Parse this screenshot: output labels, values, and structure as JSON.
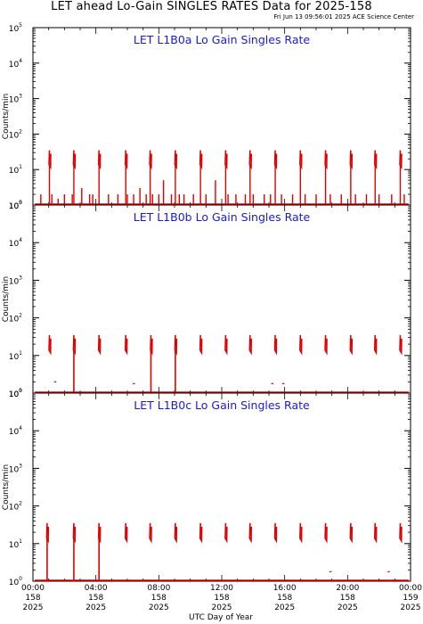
{
  "header": {
    "title": "LET ahead Lo-Gain SINGLES RATES Data for 2025-158",
    "timestamp": "Fri Jun 13 09:56:01 2025 ACE Science Center"
  },
  "colors": {
    "data": "#e00000",
    "title_text": "#1a1ad6",
    "axes": "#000000"
  },
  "chart_data": [
    {
      "type": "line",
      "title": "LET L1B0a Lo Gain Singles Rate",
      "ylabel": "Counts/min",
      "yscale": "log",
      "ylim": [
        1,
        100000
      ],
      "yticks": [
        "10^0",
        "10^1",
        "10^2",
        "10^3",
        "10^4",
        "10^5"
      ],
      "xlim": [
        0,
        24
      ],
      "burst_hours": [
        1.05,
        2.6,
        4.2,
        5.9,
        7.45,
        9.05,
        10.65,
        12.25,
        13.8,
        15.4,
        17.0,
        18.6,
        20.2,
        21.75,
        23.35
      ],
      "burst_peak": 35,
      "burst_floor": 14,
      "series": [
        {
          "values_hours": [
            0.5,
            1.2,
            1.6,
            2.0,
            2.5,
            3.1,
            3.6,
            3.8,
            4.8,
            5.4,
            6.0,
            6.4,
            6.8,
            7.2,
            7.6,
            8.0,
            8.3,
            8.8,
            9.3,
            9.6,
            10.2,
            11.0,
            11.6,
            12.4,
            12.9,
            13.5,
            14.0,
            14.7,
            15.1,
            15.8,
            16.5,
            17.3,
            18.0,
            18.9,
            19.6,
            20.5,
            21.2,
            22.0,
            22.8,
            23.6
          ],
          "values": [
            2,
            2,
            1.5,
            2,
            2,
            3,
            2,
            2,
            2,
            2,
            2,
            2,
            3,
            2,
            2,
            2,
            5,
            2,
            2,
            2,
            2,
            2,
            5,
            2,
            2,
            2,
            2,
            2,
            2,
            2,
            2,
            2,
            2,
            2,
            2,
            2,
            2,
            2,
            2,
            2
          ]
        }
      ]
    },
    {
      "type": "line",
      "title": "LET L1B0b Lo Gain Singles Rate",
      "ylabel": "Counts/min",
      "yscale": "log",
      "ylim": [
        1,
        100000
      ],
      "yticks": [
        "10^0",
        "10^1",
        "10^2",
        "10^3",
        "10^4",
        "10^5"
      ],
      "xlim": [
        0,
        24
      ],
      "burst_hours": [
        1.05,
        2.6,
        4.2,
        5.9,
        7.5,
        9.05,
        10.65,
        12.25,
        13.8,
        15.4,
        17.0,
        18.6,
        20.2,
        21.75,
        23.35
      ],
      "burst_peak": 35,
      "burst_floor": 14,
      "drop_hours": [
        2.6,
        7.5,
        9.05
      ],
      "series": [
        {
          "values_hours": [
            1.4,
            6.4,
            15.2,
            15.9
          ],
          "values": [
            2,
            1.8,
            1.8,
            1.8
          ]
        }
      ]
    },
    {
      "type": "line",
      "title": "LET L1B0c Lo Gain Singles Rate",
      "ylabel": "Counts/min",
      "yscale": "log",
      "ylim": [
        1,
        100000
      ],
      "yticks": [
        "10^0",
        "10^1",
        "10^2",
        "10^3",
        "10^4",
        "10^5"
      ],
      "xlim": [
        0,
        24
      ],
      "xlabel": "UTC Day of Year",
      "xticks": [
        {
          "hour": 0,
          "time": "00:00",
          "doy": "158",
          "year": "2025"
        },
        {
          "hour": 4,
          "time": "04:00",
          "doy": "158",
          "year": "2025"
        },
        {
          "hour": 8,
          "time": "08:00",
          "doy": "158",
          "year": "2025"
        },
        {
          "hour": 12,
          "time": "12:00",
          "doy": "158",
          "year": "2025"
        },
        {
          "hour": 16,
          "time": "16:00",
          "doy": "158",
          "year": "2025"
        },
        {
          "hour": 20,
          "time": "20:00",
          "doy": "158",
          "year": "2025"
        },
        {
          "hour": 24,
          "time": "00:00",
          "doy": "159",
          "year": "2025"
        }
      ],
      "burst_hours": [
        0.9,
        2.6,
        4.2,
        5.9,
        7.45,
        9.05,
        10.65,
        12.25,
        13.8,
        15.4,
        17.0,
        18.6,
        20.2,
        21.75,
        23.35
      ],
      "burst_peak": 35,
      "burst_floor": 14,
      "drop_hours": [
        0.9,
        2.6,
        4.2
      ],
      "series": [
        {
          "values_hours": [
            18.9,
            22.6
          ],
          "values": [
            1.8,
            1.8
          ]
        }
      ]
    }
  ]
}
